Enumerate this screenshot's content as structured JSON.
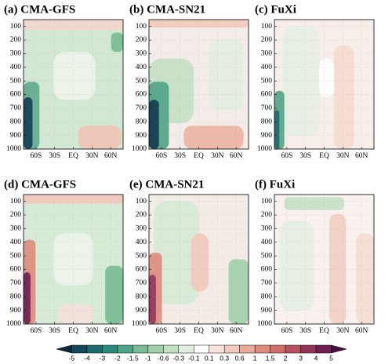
{
  "chart_data": [
    {
      "type": "contour",
      "title": "(a) CMA-GFS",
      "ylim": [
        1000,
        50
      ],
      "yticks": [
        100,
        200,
        300,
        400,
        500,
        600,
        700,
        800,
        900,
        1000
      ],
      "xlim": [
        -80,
        80
      ],
      "xticks": [
        {
          "value": -60,
          "label": "60S"
        },
        {
          "value": -30,
          "label": "30S"
        },
        {
          "value": 0,
          "label": "EQ"
        },
        {
          "value": 30,
          "label": "30N"
        },
        {
          "value": 60,
          "label": "60N"
        }
      ],
      "grid": true
    },
    {
      "type": "contour",
      "title": "(b) CMA-SN21",
      "ylim": [
        1000,
        50
      ],
      "yticks": [
        100,
        200,
        300,
        400,
        500,
        600,
        700,
        800,
        900,
        1000
      ],
      "xlim": [
        -80,
        80
      ],
      "xticks": [
        {
          "value": -60,
          "label": "60S"
        },
        {
          "value": -30,
          "label": "30S"
        },
        {
          "value": 0,
          "label": "EQ"
        },
        {
          "value": 30,
          "label": "30N"
        },
        {
          "value": 60,
          "label": "60N"
        }
      ],
      "grid": true
    },
    {
      "type": "contour",
      "title": "(c) FuXi",
      "ylim": [
        1000,
        50
      ],
      "yticks": [
        100,
        200,
        300,
        400,
        500,
        600,
        700,
        800,
        900,
        1000
      ],
      "xlim": [
        -80,
        80
      ],
      "xticks": [
        {
          "value": -60,
          "label": "60S"
        },
        {
          "value": -30,
          "label": "30S"
        },
        {
          "value": 0,
          "label": "EQ"
        },
        {
          "value": 30,
          "label": "30N"
        },
        {
          "value": 60,
          "label": "60N"
        }
      ],
      "grid": true
    },
    {
      "type": "contour",
      "title": "(d) CMA-GFS",
      "ylim": [
        1000,
        50
      ],
      "yticks": [
        100,
        200,
        300,
        400,
        500,
        600,
        700,
        800,
        900,
        1000
      ],
      "xlim": [
        -80,
        80
      ],
      "xticks": [
        {
          "value": -60,
          "label": "60S"
        },
        {
          "value": -30,
          "label": "30S"
        },
        {
          "value": 0,
          "label": "EQ"
        },
        {
          "value": 30,
          "label": "30N"
        },
        {
          "value": 60,
          "label": "60N"
        }
      ],
      "grid": true
    },
    {
      "type": "contour",
      "title": "(e) CMA-SN21",
      "ylim": [
        1000,
        50
      ],
      "yticks": [
        100,
        200,
        300,
        400,
        500,
        600,
        700,
        800,
        900,
        1000
      ],
      "xlim": [
        -80,
        80
      ],
      "xticks": [
        {
          "value": -60,
          "label": "60S"
        },
        {
          "value": -30,
          "label": "30S"
        },
        {
          "value": 0,
          "label": "EQ"
        },
        {
          "value": 30,
          "label": "30N"
        },
        {
          "value": 60,
          "label": "60N"
        }
      ],
      "grid": true
    },
    {
      "type": "contour",
      "title": "(f) FuXi",
      "ylim": [
        1000,
        50
      ],
      "yticks": [
        100,
        200,
        300,
        400,
        500,
        600,
        700,
        800,
        900,
        1000
      ],
      "xlim": [
        -80,
        80
      ],
      "xticks": [
        {
          "value": -60,
          "label": "60S"
        },
        {
          "value": -30,
          "label": "30S"
        },
        {
          "value": 0,
          "label": "EQ"
        },
        {
          "value": 30,
          "label": "30N"
        },
        {
          "value": 60,
          "label": "60N"
        }
      ],
      "grid": true
    },
    {
      "type": "colorbar",
      "ticks": [
        -5,
        -4,
        -3,
        -2,
        -1.5,
        -1,
        -0.6,
        -0.3,
        -0.1,
        0.1,
        0.3,
        0.6,
        1,
        1.5,
        2,
        3,
        4,
        5
      ],
      "colors": [
        "#0b2a3c",
        "#13475a",
        "#1c6a6e",
        "#2b8a7a",
        "#4ea486",
        "#79bb96",
        "#a1cfaa",
        "#c3e0c4",
        "#e0eedf",
        "#ffffff",
        "#f8e3dc",
        "#f2c9bb",
        "#e9aa98",
        "#dd8c7c",
        "#cf6f67",
        "#b65260",
        "#93355a",
        "#6e1f52",
        "#4a0f45"
      ]
    }
  ]
}
